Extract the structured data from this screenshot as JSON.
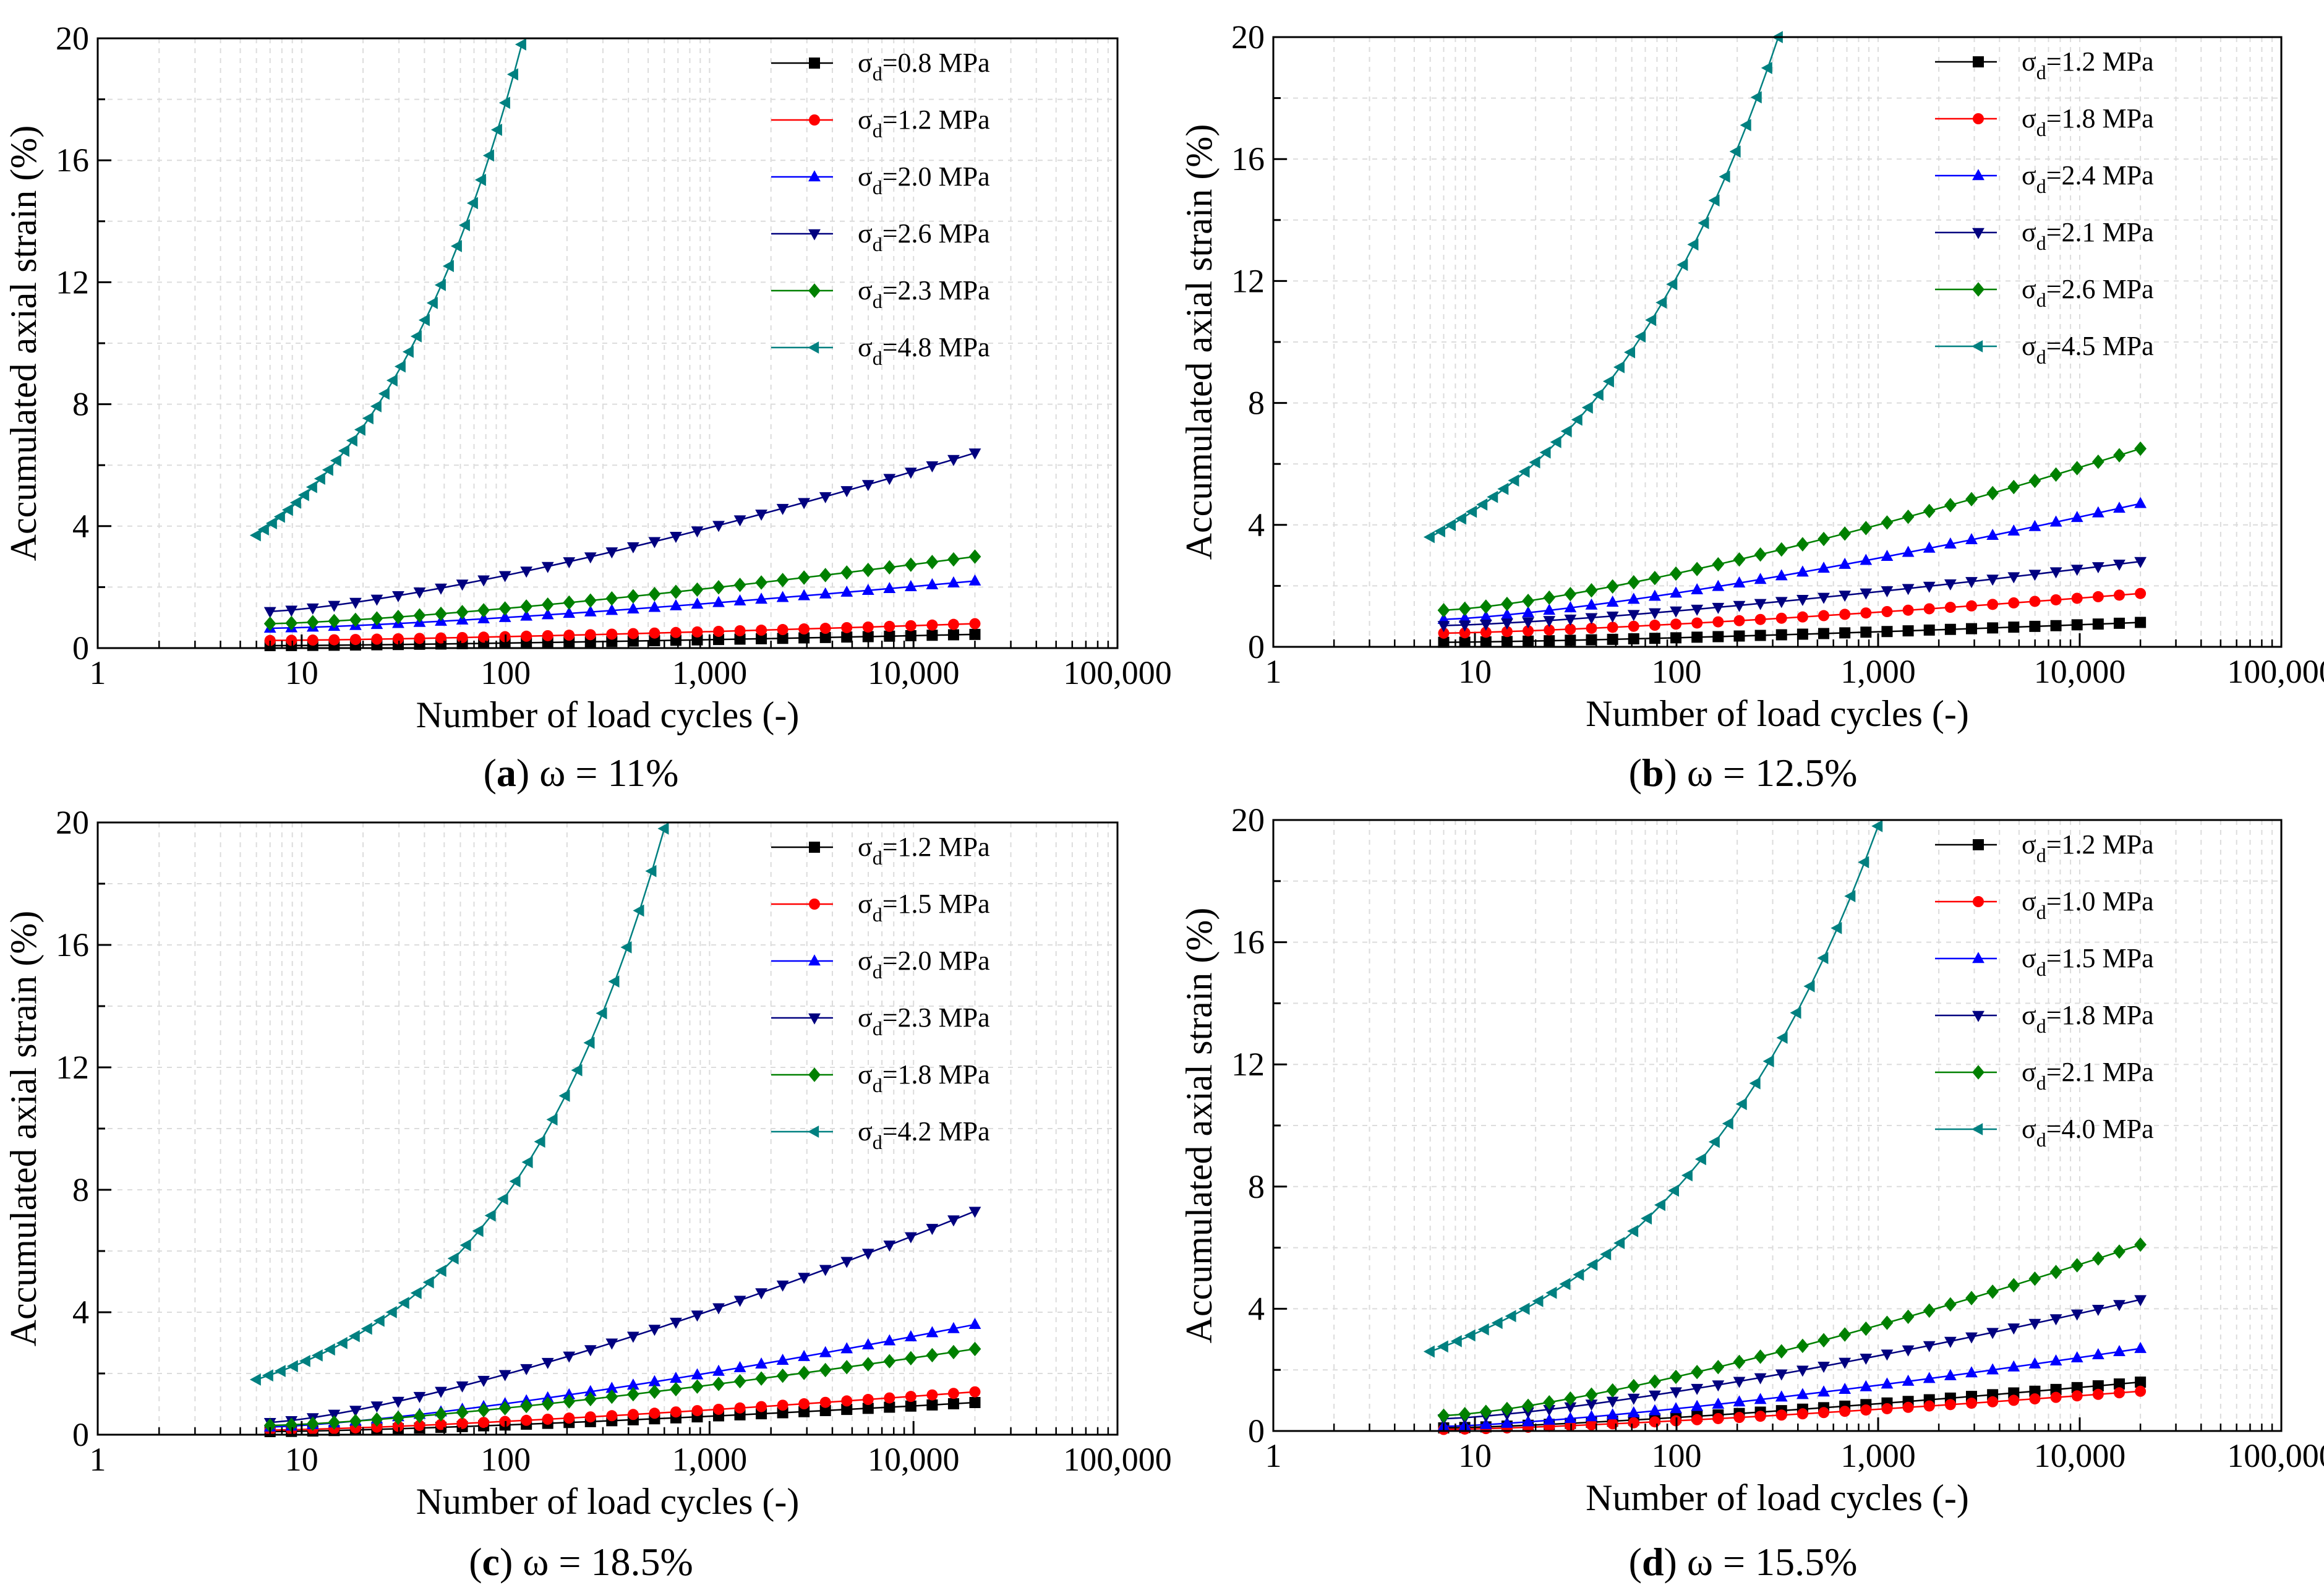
{
  "chart_data": [
    {
      "type": "line",
      "panel_letter": "a",
      "caption_rest": " ω = 11%",
      "xlabel": "Number of load cycles (-)",
      "ylabel": "Accumulated axial strain (%)",
      "xscale": "log",
      "xlim": [
        1,
        100000
      ],
      "ylim": [
        0,
        20
      ],
      "x_ticks": [
        1,
        10,
        100,
        1000,
        10000,
        100000
      ],
      "x_tick_labels": [
        "1",
        "10",
        "100",
        "1,000",
        "10,000",
        "100,000"
      ],
      "y_ticks": [
        0,
        4,
        8,
        12,
        16,
        20
      ],
      "y_tick_labels": [
        "0",
        "4",
        "8",
        "12",
        "16",
        "20"
      ],
      "grid": true,
      "legend_position": "top-right",
      "series": [
        {
          "name": "σd=0.8 MPa",
          "legend_prefix": "σ",
          "legend_sub": "d",
          "legend_suffix": "=0.8 MPa",
          "color": "#000000",
          "marker": "square",
          "x_start": 7,
          "x_end": 20000,
          "y_start": 0.08,
          "y_end": 0.45
        },
        {
          "name": "σd=1.2 MPa",
          "legend_prefix": "σ",
          "legend_sub": "d",
          "legend_suffix": "=1.2 MPa",
          "color": "#ff0000",
          "marker": "circle",
          "x_start": 7,
          "x_end": 20000,
          "y_start": 0.25,
          "y_end": 0.8
        },
        {
          "name": "σd=2.0 MPa",
          "legend_prefix": "σ",
          "legend_sub": "d",
          "legend_suffix": "=2.0 MPa",
          "color": "#0000ff",
          "marker": "triangle-up",
          "x_start": 7,
          "x_end": 20000,
          "y_start": 0.65,
          "y_end": 2.2
        },
        {
          "name": "σd=2.6 MPa",
          "legend_prefix": "σ",
          "legend_sub": "d",
          "legend_suffix": "=2.6 MPa",
          "color": "#00007f",
          "marker": "triangle-down",
          "x_start": 7,
          "x_end": 20000,
          "y_start": 1.2,
          "y_end": 6.4
        },
        {
          "name": "σd=2.3 MPa",
          "legend_prefix": "σ",
          "legend_sub": "d",
          "legend_suffix": "=2.3 MPa",
          "color": "#008000",
          "marker": "diamond",
          "x_start": 7,
          "x_end": 20000,
          "y_start": 0.8,
          "y_end": 3.0
        },
        {
          "name": "σd=4.8 MPa",
          "legend_prefix": "σ",
          "legend_sub": "d",
          "legend_suffix": "=4.8 MPa",
          "color": "#008080",
          "marker": "triangle-left",
          "x_start": 6,
          "x_end": 120,
          "y_start": 3.7,
          "y_end": 19.8
        }
      ]
    },
    {
      "type": "line",
      "panel_letter": "b",
      "caption_rest": " ω = 12.5%",
      "xlabel": "Number of load cycles (-)",
      "ylabel": "Accumulated axial strain (%)",
      "xscale": "log",
      "xlim": [
        1,
        100000
      ],
      "ylim": [
        0,
        20
      ],
      "x_ticks": [
        1,
        10,
        100,
        1000,
        10000,
        100000
      ],
      "x_tick_labels": [
        "1",
        "10",
        "100",
        "1,000",
        "10,000",
        "100,000"
      ],
      "y_ticks": [
        0,
        4,
        8,
        12,
        16,
        20
      ],
      "y_tick_labels": [
        "0",
        "4",
        "8",
        "12",
        "16",
        "20"
      ],
      "grid": true,
      "legend_position": "top-right",
      "series": [
        {
          "name": "σd=1.2 MPa",
          "legend_prefix": "σ",
          "legend_sub": "d",
          "legend_suffix": "=1.2 MPa",
          "color": "#000000",
          "marker": "square",
          "x_start": 7,
          "x_end": 20000,
          "y_start": 0.15,
          "y_end": 0.8
        },
        {
          "name": "σd=1.8 MPa",
          "legend_prefix": "σ",
          "legend_sub": "d",
          "legend_suffix": "=1.8 MPa",
          "color": "#ff0000",
          "marker": "circle",
          "x_start": 7,
          "x_end": 20000,
          "y_start": 0.45,
          "y_end": 1.75
        },
        {
          "name": "σd=2.4 MPa",
          "legend_prefix": "σ",
          "legend_sub": "d",
          "legend_suffix": "=2.4 MPa",
          "color": "#0000ff",
          "marker": "triangle-up",
          "x_start": 7,
          "x_end": 20000,
          "y_start": 0.9,
          "y_end": 4.7
        },
        {
          "name": "σd=2.1 MPa",
          "legend_prefix": "σ",
          "legend_sub": "d",
          "legend_suffix": "=2.1 MPa",
          "color": "#00007f",
          "marker": "triangle-down",
          "x_start": 7,
          "x_end": 20000,
          "y_start": 0.7,
          "y_end": 2.8
        },
        {
          "name": "σd=2.6 MPa",
          "legend_prefix": "σ",
          "legend_sub": "d",
          "legend_suffix": "=2.6 MPa",
          "color": "#008000",
          "marker": "diamond",
          "x_start": 7,
          "x_end": 20000,
          "y_start": 1.2,
          "y_end": 6.5
        },
        {
          "name": "σd=4.5 MPa",
          "legend_prefix": "σ",
          "legend_sub": "d",
          "legend_suffix": "=4.5 MPa",
          "color": "#008080",
          "marker": "triangle-left",
          "x_start": 6,
          "x_end": 320,
          "y_start": 3.6,
          "y_end": 20.0
        }
      ]
    },
    {
      "type": "line",
      "panel_letter": "c",
      "caption_rest": " ω = 18.5%",
      "xlabel": "Number of load cycles (-)",
      "ylabel": "Accumulated axial strain (%)",
      "xscale": "log",
      "xlim": [
        1,
        100000
      ],
      "ylim": [
        0,
        20
      ],
      "x_ticks": [
        1,
        10,
        100,
        1000,
        10000,
        100000
      ],
      "x_tick_labels": [
        "1",
        "10",
        "100",
        "1,000",
        "10,000",
        "100,000"
      ],
      "y_ticks": [
        0,
        4,
        8,
        12,
        16,
        20
      ],
      "y_tick_labels": [
        "0",
        "4",
        "8",
        "12",
        "16",
        "20"
      ],
      "grid": true,
      "legend_position": "top-right",
      "series": [
        {
          "name": "σd=1.2 MPa",
          "legend_prefix": "σ",
          "legend_sub": "d",
          "legend_suffix": "=1.2 MPa",
          "color": "#000000",
          "marker": "square",
          "x_start": 7,
          "x_end": 20000,
          "y_start": 0.1,
          "y_end": 1.05
        },
        {
          "name": "σd=1.5 MPa",
          "legend_prefix": "σ",
          "legend_sub": "d",
          "legend_suffix": "=1.5 MPa",
          "color": "#ff0000",
          "marker": "circle",
          "x_start": 7,
          "x_end": 20000,
          "y_start": 0.15,
          "y_end": 1.4
        },
        {
          "name": "σd=2.0 MPa",
          "legend_prefix": "σ",
          "legend_sub": "d",
          "legend_suffix": "=2.0 MPa",
          "color": "#0000ff",
          "marker": "triangle-up",
          "x_start": 7,
          "x_end": 20000,
          "y_start": 0.25,
          "y_end": 3.6
        },
        {
          "name": "σd=2.3 MPa",
          "legend_prefix": "σ",
          "legend_sub": "d",
          "legend_suffix": "=2.3 MPa",
          "color": "#00007f",
          "marker": "triangle-down",
          "x_start": 7,
          "x_end": 20000,
          "y_start": 0.4,
          "y_end": 7.3
        },
        {
          "name": "σd=1.8 MPa",
          "legend_prefix": "σ",
          "legend_sub": "d",
          "legend_suffix": "=1.8 MPa",
          "color": "#008000",
          "marker": "diamond",
          "x_start": 7,
          "x_end": 20000,
          "y_start": 0.3,
          "y_end": 2.8
        },
        {
          "name": "σd=4.2 MPa",
          "legend_prefix": "σ",
          "legend_sub": "d",
          "legend_suffix": "=4.2 MPa",
          "color": "#008080",
          "marker": "triangle-left",
          "x_start": 6,
          "x_end": 600,
          "y_start": 1.8,
          "y_end": 19.8
        }
      ]
    },
    {
      "type": "line",
      "panel_letter": "d",
      "caption_rest": " ω = 15.5%",
      "xlabel": "Number of load cycles (-)",
      "ylabel": "Accumulated axial strain (%)",
      "xscale": "log",
      "xlim": [
        1,
        100000
      ],
      "ylim": [
        0,
        20
      ],
      "x_ticks": [
        1,
        10,
        100,
        1000,
        10000,
        100000
      ],
      "x_tick_labels": [
        "1",
        "10",
        "100",
        "1,000",
        "10,000",
        "100,000"
      ],
      "y_ticks": [
        0,
        4,
        8,
        12,
        16,
        20
      ],
      "y_tick_labels": [
        "0",
        "4",
        "8",
        "12",
        "16",
        "20"
      ],
      "grid": true,
      "legend_position": "top-right",
      "series": [
        {
          "name": "σd=1.2 MPa",
          "legend_prefix": "σ",
          "legend_sub": "d",
          "legend_suffix": "=1.2 MPa",
          "color": "#000000",
          "marker": "square",
          "x_start": 7,
          "x_end": 20000,
          "y_start": 0.1,
          "y_end": 1.6
        },
        {
          "name": "σd=1.0 MPa",
          "legend_prefix": "σ",
          "legend_sub": "d",
          "legend_suffix": "=1.0 MPa",
          "color": "#ff0000",
          "marker": "circle",
          "x_start": 7,
          "x_end": 20000,
          "y_start": 0.05,
          "y_end": 1.3
        },
        {
          "name": "σd=1.5 MPa",
          "legend_prefix": "σ",
          "legend_sub": "d",
          "legend_suffix": "=1.5 MPa",
          "color": "#0000ff",
          "marker": "triangle-up",
          "x_start": 7,
          "x_end": 20000,
          "y_start": 0.15,
          "y_end": 2.7
        },
        {
          "name": "σd=1.8 MPa",
          "legend_prefix": "σ",
          "legend_sub": "d",
          "legend_suffix": "=1.8 MPa",
          "color": "#00007f",
          "marker": "triangle-down",
          "x_start": 7,
          "x_end": 20000,
          "y_start": 0.4,
          "y_end": 4.3
        },
        {
          "name": "σd=2.1 MPa",
          "legend_prefix": "σ",
          "legend_sub": "d",
          "legend_suffix": "=2.1 MPa",
          "color": "#008000",
          "marker": "diamond",
          "x_start": 7,
          "x_end": 20000,
          "y_start": 0.5,
          "y_end": 6.1
        },
        {
          "name": "σd=4.0 MPa",
          "legend_prefix": "σ",
          "legend_sub": "d",
          "legend_suffix": "=4.0 MPa",
          "color": "#008080",
          "marker": "triangle-left",
          "x_start": 6,
          "x_end": 1000,
          "y_start": 2.6,
          "y_end": 19.8
        }
      ]
    }
  ]
}
